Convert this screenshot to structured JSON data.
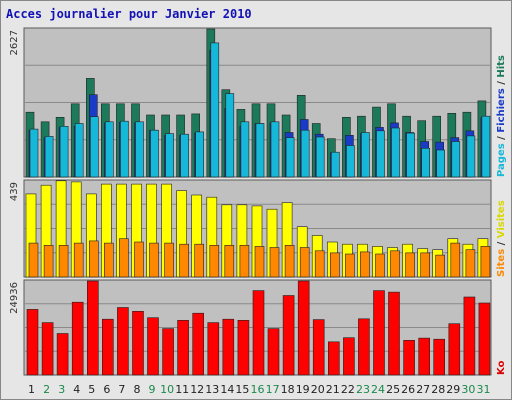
{
  "title": "Acces journalier pour Janvier 2010",
  "chart_data": [
    {
      "type": "bar",
      "panel": "pages-fichiers-hits",
      "ymax_label": "2627",
      "right_label": [
        {
          "text": "Pages",
          "color": "#15b8d8"
        },
        {
          "text": " / ",
          "color": "#333333"
        },
        {
          "text": "Fichiers",
          "color": "#1a3bc8"
        },
        {
          "text": " / ",
          "color": "#333333"
        },
        {
          "text": "Hits",
          "color": "#1c7a5a"
        }
      ],
      "ylim": [
        0,
        2627
      ],
      "categories": [
        "1",
        "2",
        "3",
        "4",
        "5",
        "6",
        "7",
        "8",
        "9",
        "10",
        "11",
        "12",
        "13",
        "14",
        "15",
        "16",
        "17",
        "18",
        "19",
        "20",
        "21",
        "22",
        "23",
        "24",
        "25",
        "26",
        "27",
        "28",
        "29",
        "30",
        "31"
      ],
      "series": [
        {
          "name": "Hits",
          "color": "#1c7a5a",
          "values": [
            1150,
            980,
            1060,
            1300,
            1750,
            1300,
            1300,
            1300,
            1100,
            1100,
            1100,
            1120,
            2627,
            1550,
            1200,
            1300,
            1300,
            1100,
            1450,
            950,
            680,
            1060,
            1080,
            1240,
            1300,
            1080,
            1000,
            1080,
            1130,
            1150,
            1350
          ]
        },
        {
          "name": "Fichiers",
          "color": "#1a3bc8",
          "values": [
            830,
            700,
            880,
            900,
            1460,
            960,
            970,
            960,
            830,
            740,
            740,
            780,
            2250,
            1220,
            900,
            950,
            960,
            790,
            1020,
            760,
            430,
            740,
            770,
            880,
            960,
            790,
            630,
            620,
            700,
            820,
            1050
          ]
        },
        {
          "name": "Pages",
          "color": "#15b8d8",
          "values": [
            850,
            720,
            900,
            950,
            1070,
            980,
            990,
            980,
            830,
            770,
            760,
            800,
            2380,
            1480,
            980,
            950,
            980,
            700,
            830,
            710,
            440,
            560,
            790,
            820,
            870,
            780,
            510,
            480,
            630,
            730,
            1080
          ]
        }
      ]
    },
    {
      "type": "bar",
      "panel": "sites-visites",
      "ymax_label": "439",
      "right_label": [
        {
          "text": "Sites",
          "color": "#ff8800"
        },
        {
          "text": " / ",
          "color": "#333333"
        },
        {
          "text": "Visites",
          "color": "#d8d800"
        }
      ],
      "ylim": [
        0,
        439
      ],
      "categories": [
        "1",
        "2",
        "3",
        "4",
        "5",
        "6",
        "7",
        "8",
        "9",
        "10",
        "11",
        "12",
        "13",
        "14",
        "15",
        "16",
        "17",
        "18",
        "19",
        "20",
        "21",
        "22",
        "23",
        "24",
        "25",
        "26",
        "27",
        "28",
        "29",
        "30",
        "31"
      ],
      "series": [
        {
          "name": "Visites",
          "color": "#ffff00",
          "values": [
            380,
            420,
            440,
            435,
            380,
            425,
            425,
            425,
            425,
            425,
            395,
            375,
            365,
            330,
            330,
            325,
            310,
            340,
            230,
            190,
            160,
            150,
            150,
            140,
            135,
            150,
            130,
            125,
            175,
            150,
            175
          ]
        },
        {
          "name": "Sites",
          "color": "#ff8800",
          "values": [
            155,
            145,
            145,
            155,
            165,
            155,
            175,
            160,
            155,
            155,
            150,
            150,
            145,
            145,
            145,
            140,
            135,
            145,
            135,
            120,
            110,
            105,
            115,
            105,
            120,
            110,
            110,
            100,
            155,
            125,
            140
          ]
        }
      ]
    },
    {
      "type": "bar",
      "panel": "ko",
      "ymax_label": "24936",
      "right_label": [
        {
          "text": "Ko",
          "color": "#dd0000"
        }
      ],
      "ylim": [
        0,
        24936
      ],
      "categories": [
        "1",
        "2",
        "3",
        "4",
        "5",
        "6",
        "7",
        "8",
        "9",
        "10",
        "11",
        "12",
        "13",
        "14",
        "15",
        "16",
        "17",
        "18",
        "19",
        "20",
        "21",
        "22",
        "23",
        "24",
        "25",
        "26",
        "27",
        "28",
        "29",
        "30",
        "31"
      ],
      "series": [
        {
          "name": "Ko",
          "color": "#ff0000",
          "values": [
            17400,
            13900,
            11000,
            19300,
            24936,
            14800,
            17900,
            16900,
            15200,
            12300,
            14500,
            16400,
            13900,
            14800,
            14500,
            22400,
            12300,
            21100,
            24936,
            14700,
            8800,
            9900,
            14900,
            22400,
            22000,
            9200,
            9800,
            9500,
            13600,
            20700,
            19100
          ]
        }
      ]
    }
  ],
  "x_axis": {
    "labels": [
      "1",
      "2",
      "3",
      "4",
      "5",
      "6",
      "7",
      "8",
      "9",
      "10",
      "11",
      "12",
      "13",
      "14",
      "15",
      "16",
      "17",
      "18",
      "19",
      "20",
      "21",
      "22",
      "23",
      "24",
      "25",
      "26",
      "27",
      "28",
      "29",
      "30",
      "31"
    ],
    "weekend": [
      "2",
      "3",
      "9",
      "10",
      "16",
      "17",
      "23",
      "24",
      "30",
      "31"
    ],
    "weekday_color": "#222222",
    "weekend_color": "#1a8a4a"
  }
}
